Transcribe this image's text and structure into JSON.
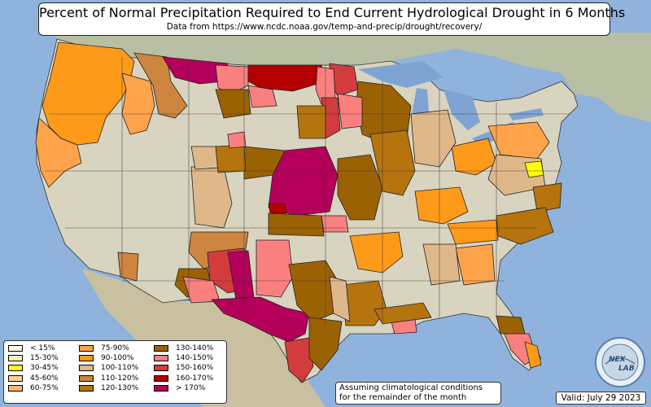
{
  "header": {
    "title": "Percent of Normal Precipitation Required to End Current Hydrological Drought in 6 Months",
    "subtitle": "Data from https://www.ncdc.noaa.gov/temp-and-precip/drought/recovery/"
  },
  "legend": {
    "items": [
      {
        "label": "< 15%",
        "color": "#ffffe5"
      },
      {
        "label": "15-30%",
        "color": "#fff3b2"
      },
      {
        "label": "30-45%",
        "color": "#ffff00"
      },
      {
        "label": "45-60%",
        "color": "#fdd49e"
      },
      {
        "label": "60-75%",
        "color": "#fdbb6b"
      },
      {
        "label": "75-90%",
        "color": "#fea349"
      },
      {
        "label": "90-100%",
        "color": "#fe9a1a"
      },
      {
        "label": "100-110%",
        "color": "#dfb88a"
      },
      {
        "label": "110-120%",
        "color": "#cd853f"
      },
      {
        "label": "120-130%",
        "color": "#b5740e"
      },
      {
        "label": "130-140%",
        "color": "#9b6204"
      },
      {
        "label": "140-150%",
        "color": "#fa8080"
      },
      {
        "label": "150-160%",
        "color": "#d23c3c"
      },
      {
        "label": "160-170%",
        "color": "#b40000"
      },
      {
        "label": "> 170%",
        "color": "#b4005a"
      }
    ]
  },
  "note": {
    "line1": "Assuming climatological conditions",
    "line2": "for the remainder of the month"
  },
  "valid": "Valid: July 29 2023",
  "logo": {
    "text_top": "NEX",
    "text_bottom": "LAB"
  },
  "colors": {
    "ocean": "#8fb3dc",
    "land": "#d9d4bf",
    "lake": "#7fa4d4"
  }
}
